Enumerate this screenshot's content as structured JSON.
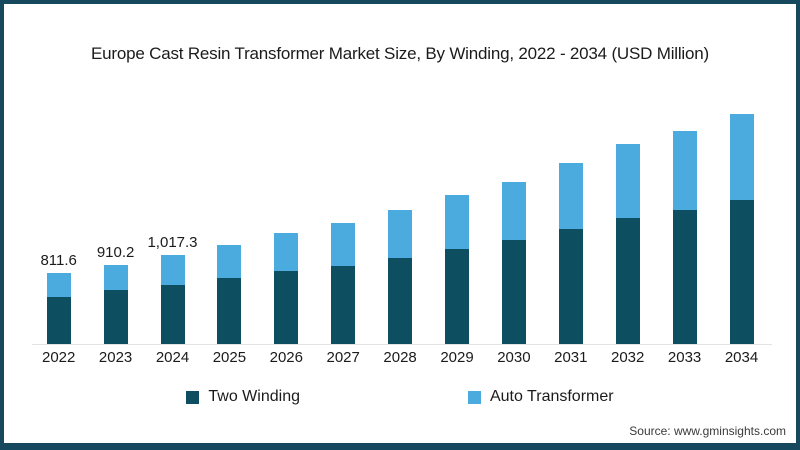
{
  "title": "Europe Cast Resin Transformer Market Size, By Winding, 2022 - 2034 (USD Million)",
  "source": "Source: www.gminsights.com",
  "colors": {
    "frame_border": "#16485e",
    "two_winding": "#0d4e61",
    "auto_transformer": "#4babdf",
    "axis_line": "#e3e3e3"
  },
  "legend": {
    "items": [
      {
        "label": "Two Winding",
        "color": "#0d4e61"
      },
      {
        "label": "Auto Transformer",
        "color": "#4babdf"
      }
    ]
  },
  "chart_data": {
    "type": "bar",
    "stacked": true,
    "title": "Europe Cast Resin Transformer Market Size, By Winding, 2022 - 2034 (USD Million)",
    "unit": "USD Million",
    "categories": [
      "2022",
      "2023",
      "2024",
      "2025",
      "2026",
      "2027",
      "2028",
      "2029",
      "2030",
      "2031",
      "2032",
      "2033",
      "2034"
    ],
    "series": [
      {
        "name": "Two Winding",
        "color": "#0d4e61",
        "values": [
          540.0,
          615.0,
          678.0,
          762,
          842,
          896,
          992,
          1092,
          1198,
          1325,
          1448,
          1543,
          1658
        ]
      },
      {
        "name": "Auto Transformer",
        "color": "#4babdf",
        "values": [
          271.6,
          295.2,
          339.3,
          379,
          437,
          498,
          551,
          617,
          667,
          755,
          847,
          904,
          981
        ]
      }
    ],
    "totals": [
      811.6,
      910.2,
      1017.3,
      1141,
      1279,
      1394,
      1543,
      1709,
      1865,
      2080,
      2295,
      2447,
      2639
    ],
    "data_labels": [
      "811.6",
      "910.2",
      "1,017.3",
      "",
      "",
      "",
      "",
      "",
      "",
      "",
      "",
      "",
      ""
    ],
    "legend_position": "bottom",
    "grid": false,
    "y_axis_visible": false
  }
}
